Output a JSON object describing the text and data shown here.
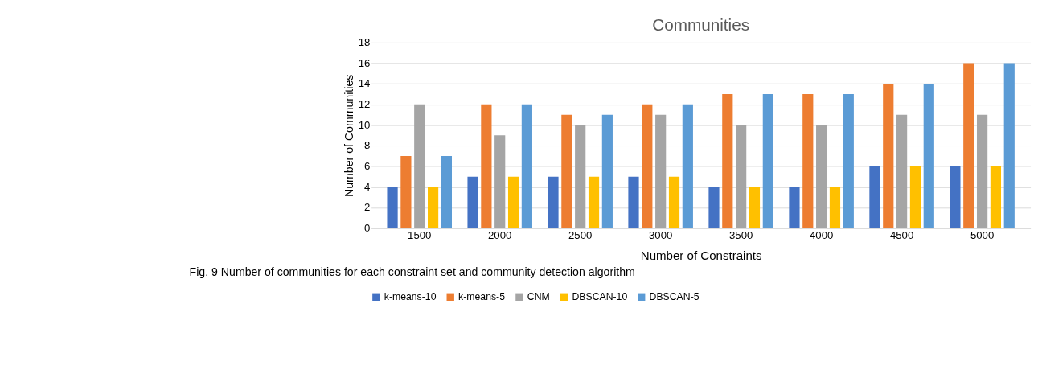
{
  "chart_data": {
    "type": "bar",
    "title": "Communities",
    "xlabel": "Number of Constraints",
    "ylabel": "Number of Communities",
    "categories": [
      "1500",
      "2000",
      "2500",
      "3000",
      "3500",
      "4000",
      "4500",
      "5000"
    ],
    "series": [
      {
        "name": "k-means-10",
        "color": "#4472c4",
        "values": [
          4,
          5,
          5,
          5,
          4,
          4,
          6,
          6
        ]
      },
      {
        "name": "k-means-5",
        "color": "#ed7d31",
        "values": [
          7,
          12,
          11,
          12,
          13,
          13,
          14,
          16
        ]
      },
      {
        "name": "CNM",
        "color": "#a5a5a5",
        "values": [
          12,
          9,
          10,
          11,
          10,
          10,
          11,
          11
        ]
      },
      {
        "name": "DBSCAN-10",
        "color": "#ffc000",
        "values": [
          4,
          5,
          5,
          5,
          4,
          4,
          6,
          6
        ]
      },
      {
        "name": "DBSCAN-5",
        "color": "#5b9bd5",
        "values": [
          7,
          12,
          11,
          12,
          13,
          13,
          14,
          16
        ]
      }
    ],
    "ylim": [
      0,
      18
    ],
    "yticks": [
      0,
      2,
      4,
      6,
      8,
      10,
      12,
      14,
      16,
      18
    ],
    "grid": "y",
    "legend": "bottom",
    "annotations": [
      "Fig. 9 Number of communities for each constraint set and community detection algorithm"
    ]
  }
}
